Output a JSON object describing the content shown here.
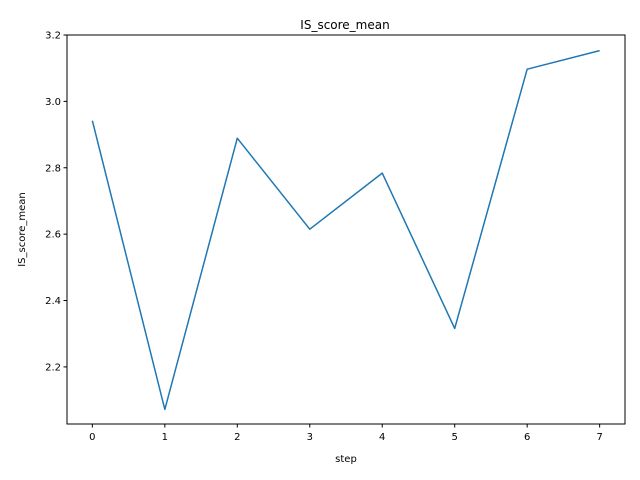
{
  "chart_data": {
    "type": "line",
    "title": "IS_score_mean",
    "xlabel": "step",
    "ylabel": "IS_score_mean",
    "x": [
      0,
      1,
      2,
      3,
      4,
      5,
      6,
      7
    ],
    "series": [
      {
        "values": [
          2.942,
          2.072,
          2.889,
          2.615,
          2.784,
          2.316,
          3.097,
          3.153
        ],
        "color": "#1f77b4"
      }
    ],
    "xticks": [
      0,
      1,
      2,
      3,
      4,
      5,
      6,
      7
    ],
    "xtick_labels": [
      "0",
      "1",
      "2",
      "3",
      "4",
      "5",
      "6",
      "7"
    ],
    "yticks": [
      2.2,
      2.4,
      2.6,
      2.8,
      3.0,
      3.2
    ],
    "ytick_labels": [
      "2.2",
      "2.4",
      "2.6",
      "2.8",
      "3.0",
      "3.2"
    ],
    "xlim": [
      -0.35,
      7.35
    ],
    "ylim": [
      2.028,
      3.2
    ],
    "grid": false,
    "legend": "none"
  }
}
